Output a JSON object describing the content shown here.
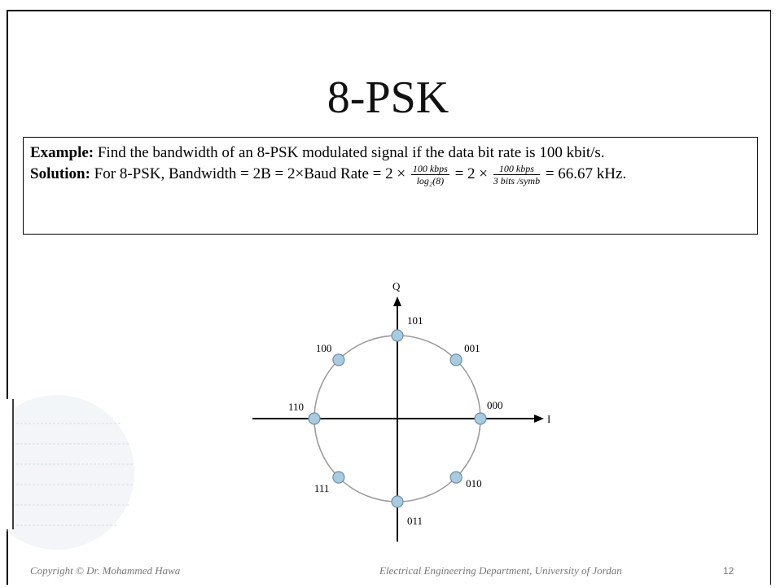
{
  "title": "8-PSK",
  "example": {
    "label": "Example:",
    "text": " Find the bandwidth of an 8-PSK modulated signal if the data bit rate is 100 kbit/s."
  },
  "solution": {
    "label": "Solution:",
    "lead": " For 8-PSK, Bandwidth = 2B = 2×Baud Rate = 2 × ",
    "frac1": {
      "num": "100 kbps",
      "den": "log₂(8)"
    },
    "mid": " = 2 × ",
    "frac2": {
      "num": "100 kbps",
      "den": "3 bits /symb"
    },
    "tail": " = 66.67 kHz."
  },
  "diagram": {
    "q_axis": "Q",
    "i_axis": "I",
    "points": [
      "000",
      "001",
      "101",
      "100",
      "110",
      "111",
      "011",
      "010"
    ]
  },
  "footer": {
    "copyright": "Copyright © Dr. Mohammed Hawa",
    "department": "Electrical Engineering Department, University of Jordan",
    "page": "12"
  }
}
